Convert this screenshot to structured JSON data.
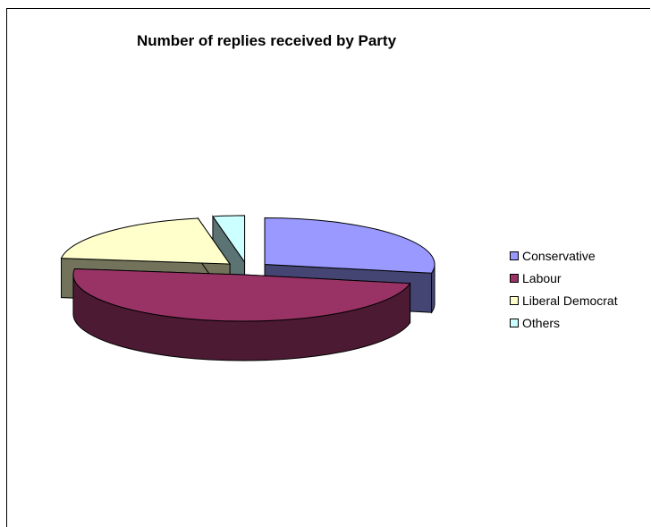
{
  "chart_data": {
    "type": "pie",
    "title": "Number of replies received by Party",
    "categories": [
      "Conservative",
      "Labour",
      "Liberal Democrat",
      "Others"
    ],
    "values": [
      28,
      49,
      20,
      3
    ],
    "exploded": true,
    "three_d": true,
    "legend_position": "right",
    "colors": {
      "Conservative": "#9999FF",
      "Labour": "#993366",
      "Liberal Democrat": "#FFFFCC",
      "Others": "#CCFFFF"
    }
  }
}
